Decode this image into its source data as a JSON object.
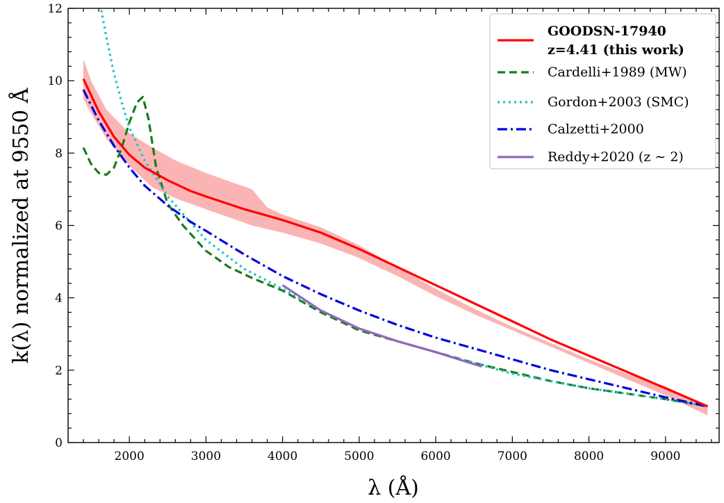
{
  "chart_data": {
    "type": "line",
    "xlabel": "λ (Å)",
    "ylabel": "k(λ) normalized at 9550 Å",
    "xlim": [
      1200,
      9700
    ],
    "ylim": [
      0,
      12
    ],
    "x_ticks": [
      2000,
      3000,
      4000,
      5000,
      6000,
      7000,
      8000,
      9000
    ],
    "x_tick_labels": [
      "2000",
      "3000",
      "4000",
      "5000",
      "6000",
      "7000",
      "8000",
      "9000"
    ],
    "y_ticks": [
      0,
      2,
      4,
      6,
      8,
      10,
      12
    ],
    "y_tick_labels": [
      "0",
      "2",
      "4",
      "6",
      "8",
      "10",
      "12"
    ],
    "legend_position": "top-right",
    "band": {
      "color": "#fbb4b4",
      "x": [
        1400,
        1500,
        1700,
        2000,
        2300,
        2600,
        3000,
        3400,
        3600,
        3700,
        3800,
        4000,
        4500,
        5000,
        5500,
        6000,
        6500,
        7000,
        7500,
        8000,
        8500,
        9000,
        9550
      ],
      "lower": [
        9.5,
        9.1,
        8.4,
        7.65,
        7.05,
        6.75,
        6.45,
        6.15,
        6.0,
        5.95,
        5.9,
        5.8,
        5.5,
        5.1,
        4.6,
        4.05,
        3.55,
        3.1,
        2.65,
        2.2,
        1.75,
        1.3,
        0.75
      ],
      "upper": [
        10.6,
        10.0,
        9.2,
        8.55,
        8.15,
        7.8,
        7.45,
        7.15,
        7.0,
        6.75,
        6.5,
        6.3,
        5.95,
        5.45,
        4.85,
        4.25,
        3.7,
        3.2,
        2.75,
        2.3,
        1.9,
        1.55,
        1.0
      ]
    },
    "series": [
      {
        "name": "GOODSN-17940",
        "name_line2": "z=4.41 (this work)",
        "color": "#ff0000",
        "dash": "solid",
        "x": [
          1400,
          1600,
          1800,
          2000,
          2200,
          2500,
          2800,
          3000,
          3500,
          4000,
          4500,
          5000,
          5500,
          6000,
          6500,
          7000,
          7500,
          8000,
          8500,
          9000,
          9550
        ],
        "y": [
          10.05,
          9.15,
          8.45,
          7.95,
          7.6,
          7.25,
          6.95,
          6.8,
          6.45,
          6.15,
          5.8,
          5.35,
          4.85,
          4.35,
          3.85,
          3.35,
          2.85,
          2.4,
          1.95,
          1.5,
          1.0
        ]
      },
      {
        "name": "Cardelli+1989 (MW)",
        "color": "#1a7a1a",
        "dash": "dashed",
        "x": [
          1400,
          1500,
          1600,
          1700,
          1800,
          1900,
          2000,
          2100,
          2175,
          2250,
          2350,
          2500,
          2700,
          3000,
          3300,
          3600,
          4000,
          4500,
          5000,
          5500,
          6000,
          6500,
          7000,
          7500,
          8000,
          8500,
          9000,
          9550
        ],
        "y": [
          8.15,
          7.7,
          7.45,
          7.4,
          7.6,
          8.15,
          8.85,
          9.4,
          9.55,
          8.95,
          7.6,
          6.6,
          6.0,
          5.3,
          4.85,
          4.55,
          4.2,
          3.6,
          3.1,
          2.8,
          2.5,
          2.2,
          1.95,
          1.7,
          1.5,
          1.35,
          1.2,
          1.0
        ]
      },
      {
        "name": "Gordon+2003 (SMC)",
        "color": "#22c1c1",
        "dash": "dotted",
        "x": [
          1620,
          1700,
          1800,
          1900,
          2000,
          2200,
          2500,
          3000,
          3500,
          4000,
          4500,
          5000,
          5500,
          6000,
          6500,
          7000,
          7500,
          8000,
          8500,
          9000,
          9550
        ],
        "y": [
          12.1,
          11.2,
          10.2,
          9.4,
          8.7,
          7.8,
          6.8,
          5.6,
          4.8,
          4.25,
          3.65,
          3.15,
          2.8,
          2.5,
          2.2,
          1.9,
          1.7,
          1.5,
          1.35,
          1.2,
          1.0
        ]
      },
      {
        "name": "Calzetti+2000",
        "color": "#0000dd",
        "dash": "dashdot",
        "x": [
          1400,
          1600,
          1800,
          2000,
          2200,
          2500,
          2800,
          3000,
          3500,
          4000,
          4500,
          5000,
          5500,
          6000,
          6500,
          7000,
          7500,
          8000,
          8500,
          9000,
          9550
        ],
        "y": [
          9.75,
          8.9,
          8.2,
          7.6,
          7.1,
          6.55,
          6.1,
          5.85,
          5.2,
          4.6,
          4.1,
          3.65,
          3.25,
          2.9,
          2.6,
          2.3,
          2.0,
          1.75,
          1.5,
          1.25,
          1.0
        ]
      },
      {
        "name": "Reddy+2020 (z ∼ 2)",
        "color": "#9467bd",
        "dash": "solid",
        "x": [
          4000,
          4500,
          5000,
          5500,
          6000,
          6600
        ],
        "y": [
          4.35,
          3.65,
          3.15,
          2.8,
          2.5,
          2.1
        ]
      }
    ]
  }
}
